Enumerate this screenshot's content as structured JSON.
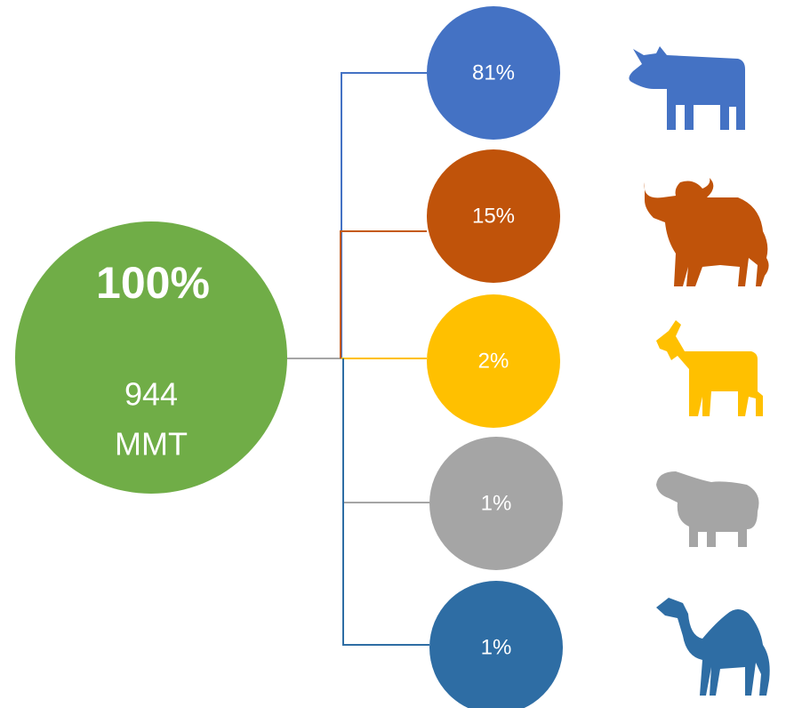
{
  "root": {
    "title": "100%",
    "lines": [
      "944",
      "MMT"
    ]
  },
  "nodes": [
    {
      "label": "81%"
    },
    {
      "label": "15%"
    },
    {
      "label": "2%"
    },
    {
      "label": "1%"
    },
    {
      "label": "1%"
    }
  ]
}
